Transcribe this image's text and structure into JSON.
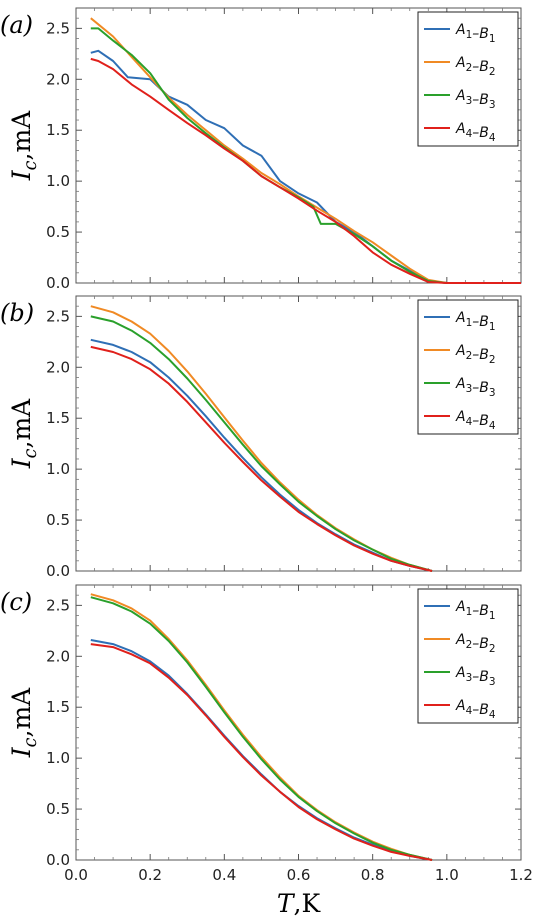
{
  "chart_data": [
    {
      "type": "line",
      "panel_label": "(a)",
      "ylabel": "I_c,mA",
      "xlim": [
        0,
        1.2
      ],
      "ylim": [
        0,
        2.7
      ],
      "xticks": [
        "0.0",
        "0.2",
        "0.4",
        "0.6",
        "0.8",
        "1.0",
        "1.2"
      ],
      "yticks": [
        "0.0",
        "0.5",
        "1.0",
        "1.5",
        "2.0",
        "2.5"
      ],
      "legend_position": "top-right",
      "series": [
        {
          "name": "A1–B1",
          "color": "#2f6fb5",
          "x": [
            0.04,
            0.06,
            0.1,
            0.14,
            0.2,
            0.25,
            0.3,
            0.35,
            0.4,
            0.45,
            0.5,
            0.55,
            0.6,
            0.65,
            0.7,
            0.75,
            0.8,
            0.85,
            0.9,
            0.95,
            1.0,
            1.2
          ],
          "y": [
            2.26,
            2.28,
            2.18,
            2.02,
            2.0,
            1.83,
            1.75,
            1.6,
            1.52,
            1.35,
            1.25,
            1.0,
            0.88,
            0.79,
            0.6,
            0.5,
            0.36,
            0.22,
            0.12,
            0.02,
            0.0,
            0.0
          ]
        },
        {
          "name": "A2–B2",
          "color": "#f08a24",
          "x": [
            0.04,
            0.1,
            0.15,
            0.2,
            0.25,
            0.3,
            0.35,
            0.4,
            0.45,
            0.5,
            0.55,
            0.6,
            0.65,
            0.7,
            0.75,
            0.8,
            0.85,
            0.9,
            0.95,
            1.0,
            1.2
          ],
          "y": [
            2.6,
            2.42,
            2.22,
            2.02,
            1.82,
            1.65,
            1.5,
            1.35,
            1.22,
            1.08,
            0.97,
            0.85,
            0.74,
            0.63,
            0.51,
            0.4,
            0.27,
            0.14,
            0.03,
            0.0,
            0.0
          ]
        },
        {
          "name": "A3–B3",
          "color": "#2aa02b",
          "x": [
            0.04,
            0.06,
            0.1,
            0.15,
            0.2,
            0.25,
            0.3,
            0.35,
            0.4,
            0.45,
            0.5,
            0.55,
            0.6,
            0.64,
            0.66,
            0.7,
            0.75,
            0.8,
            0.85,
            0.9,
            0.95,
            1.0,
            1.2
          ],
          "y": [
            2.5,
            2.5,
            2.38,
            2.24,
            2.06,
            1.8,
            1.62,
            1.47,
            1.33,
            1.2,
            1.05,
            0.94,
            0.84,
            0.75,
            0.58,
            0.58,
            0.48,
            0.36,
            0.22,
            0.11,
            0.02,
            0.0,
            0.0
          ]
        },
        {
          "name": "A4–B4",
          "color": "#e0201b",
          "x": [
            0.04,
            0.06,
            0.1,
            0.15,
            0.2,
            0.25,
            0.3,
            0.35,
            0.4,
            0.45,
            0.5,
            0.55,
            0.6,
            0.65,
            0.7,
            0.75,
            0.8,
            0.85,
            0.9,
            0.95,
            1.0,
            1.2
          ],
          "y": [
            2.2,
            2.18,
            2.1,
            1.95,
            1.83,
            1.7,
            1.57,
            1.45,
            1.32,
            1.2,
            1.05,
            0.94,
            0.83,
            0.71,
            0.6,
            0.46,
            0.3,
            0.18,
            0.09,
            0.01,
            0.0,
            0.0
          ]
        }
      ]
    },
    {
      "type": "line",
      "panel_label": "(b)",
      "ylabel": "I_c,mA",
      "xlim": [
        0,
        1.2
      ],
      "ylim": [
        0,
        2.7
      ],
      "xticks": [
        "0.0",
        "0.2",
        "0.4",
        "0.6",
        "0.8",
        "1.0",
        "1.2"
      ],
      "yticks": [
        "0.0",
        "0.5",
        "1.0",
        "1.5",
        "2.0",
        "2.5"
      ],
      "legend_position": "top-right",
      "series": [
        {
          "name": "A1–B1",
          "color": "#2f6fb5",
          "x": [
            0.04,
            0.1,
            0.15,
            0.2,
            0.25,
            0.3,
            0.35,
            0.4,
            0.45,
            0.5,
            0.55,
            0.6,
            0.65,
            0.7,
            0.75,
            0.8,
            0.85,
            0.9,
            0.96
          ],
          "y": [
            2.27,
            2.22,
            2.15,
            2.05,
            1.9,
            1.72,
            1.52,
            1.31,
            1.11,
            0.92,
            0.75,
            0.6,
            0.47,
            0.36,
            0.26,
            0.18,
            0.1,
            0.05,
            0.0
          ]
        },
        {
          "name": "A2–B2",
          "color": "#f08a24",
          "x": [
            0.04,
            0.1,
            0.15,
            0.2,
            0.25,
            0.3,
            0.35,
            0.4,
            0.45,
            0.5,
            0.55,
            0.6,
            0.65,
            0.7,
            0.75,
            0.8,
            0.85,
            0.9,
            0.96
          ],
          "y": [
            2.6,
            2.54,
            2.45,
            2.33,
            2.16,
            1.96,
            1.74,
            1.51,
            1.28,
            1.06,
            0.87,
            0.7,
            0.55,
            0.42,
            0.31,
            0.21,
            0.13,
            0.06,
            0.0
          ]
        },
        {
          "name": "A3–B3",
          "color": "#2aa02b",
          "x": [
            0.04,
            0.1,
            0.15,
            0.2,
            0.25,
            0.3,
            0.35,
            0.4,
            0.45,
            0.5,
            0.55,
            0.6,
            0.65,
            0.7,
            0.75,
            0.8,
            0.85,
            0.9,
            0.96
          ],
          "y": [
            2.5,
            2.45,
            2.36,
            2.24,
            2.08,
            1.89,
            1.68,
            1.46,
            1.24,
            1.03,
            0.85,
            0.68,
            0.54,
            0.41,
            0.3,
            0.21,
            0.12,
            0.06,
            0.0
          ]
        },
        {
          "name": "A4–B4",
          "color": "#e0201b",
          "x": [
            0.04,
            0.1,
            0.15,
            0.2,
            0.25,
            0.3,
            0.35,
            0.4,
            0.45,
            0.5,
            0.55,
            0.6,
            0.65,
            0.7,
            0.75,
            0.8,
            0.85,
            0.9,
            0.96
          ],
          "y": [
            2.2,
            2.15,
            2.08,
            1.98,
            1.84,
            1.66,
            1.46,
            1.26,
            1.07,
            0.89,
            0.73,
            0.58,
            0.46,
            0.35,
            0.25,
            0.17,
            0.1,
            0.05,
            0.0
          ]
        }
      ]
    },
    {
      "type": "line",
      "panel_label": "(c)",
      "ylabel": "I_c,mA",
      "xlabel": "T,K",
      "xlim": [
        0,
        1.2
      ],
      "ylim": [
        0,
        2.7
      ],
      "xticks": [
        "0.0",
        "0.2",
        "0.4",
        "0.6",
        "0.8",
        "1.0",
        "1.2"
      ],
      "yticks": [
        "0.0",
        "0.5",
        "1.0",
        "1.5",
        "2.0",
        "2.5"
      ],
      "legend_position": "top-right",
      "series": [
        {
          "name": "A1–B1",
          "color": "#2f6fb5",
          "x": [
            0.04,
            0.1,
            0.15,
            0.2,
            0.25,
            0.3,
            0.35,
            0.4,
            0.45,
            0.5,
            0.55,
            0.6,
            0.65,
            0.7,
            0.75,
            0.8,
            0.85,
            0.9,
            0.96
          ],
          "y": [
            2.16,
            2.12,
            2.05,
            1.95,
            1.81,
            1.63,
            1.43,
            1.22,
            1.02,
            0.84,
            0.67,
            0.53,
            0.41,
            0.31,
            0.22,
            0.15,
            0.09,
            0.04,
            0.0
          ]
        },
        {
          "name": "A2–B2",
          "color": "#f08a24",
          "x": [
            0.04,
            0.1,
            0.15,
            0.2,
            0.25,
            0.3,
            0.35,
            0.4,
            0.45,
            0.5,
            0.55,
            0.6,
            0.65,
            0.7,
            0.75,
            0.8,
            0.85,
            0.9,
            0.96
          ],
          "y": [
            2.61,
            2.55,
            2.47,
            2.35,
            2.17,
            1.96,
            1.72,
            1.47,
            1.23,
            1.01,
            0.81,
            0.63,
            0.49,
            0.37,
            0.27,
            0.18,
            0.11,
            0.05,
            0.0
          ]
        },
        {
          "name": "A3–B3",
          "color": "#2aa02b",
          "x": [
            0.04,
            0.1,
            0.15,
            0.2,
            0.25,
            0.3,
            0.35,
            0.4,
            0.45,
            0.5,
            0.55,
            0.6,
            0.65,
            0.7,
            0.75,
            0.8,
            0.85,
            0.9,
            0.96
          ],
          "y": [
            2.58,
            2.52,
            2.44,
            2.32,
            2.15,
            1.94,
            1.7,
            1.45,
            1.21,
            0.99,
            0.79,
            0.62,
            0.48,
            0.36,
            0.26,
            0.17,
            0.1,
            0.05,
            0.0
          ]
        },
        {
          "name": "A4–B4",
          "color": "#e0201b",
          "x": [
            0.04,
            0.1,
            0.15,
            0.2,
            0.25,
            0.3,
            0.35,
            0.4,
            0.45,
            0.5,
            0.55,
            0.6,
            0.65,
            0.7,
            0.75,
            0.8,
            0.85,
            0.9,
            0.96
          ],
          "y": [
            2.12,
            2.09,
            2.02,
            1.93,
            1.79,
            1.62,
            1.42,
            1.21,
            1.01,
            0.83,
            0.67,
            0.52,
            0.4,
            0.3,
            0.21,
            0.14,
            0.08,
            0.04,
            0.0
          ]
        }
      ]
    }
  ]
}
